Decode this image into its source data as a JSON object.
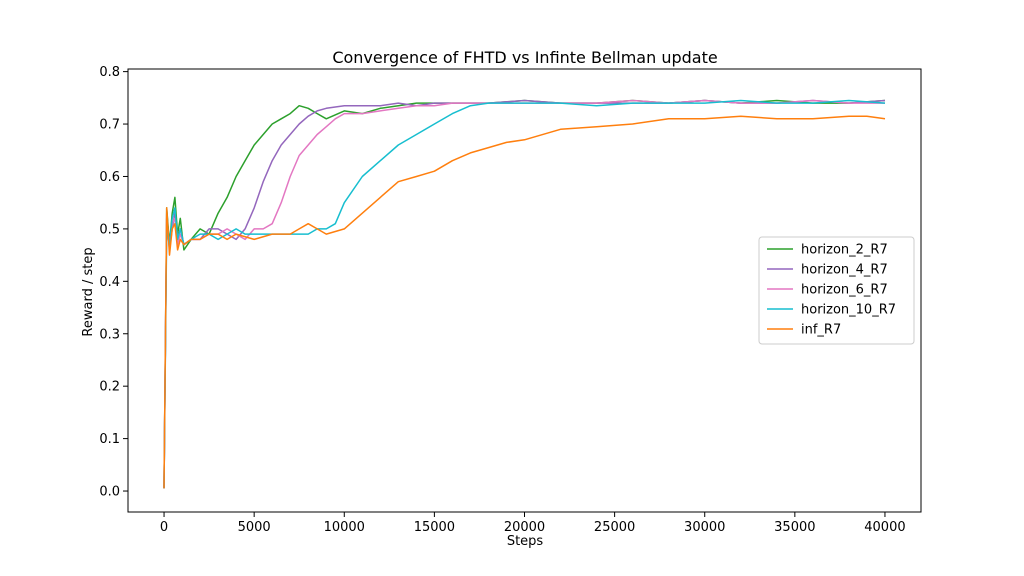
{
  "chart_data": {
    "type": "line",
    "title": "Convergence of FHTD vs Infinte Bellman update",
    "xlabel": "Steps",
    "ylabel": "Reward / step",
    "xlim": [
      -2000,
      42000
    ],
    "ylim": [
      -0.04,
      0.805
    ],
    "xticks": [
      0,
      5000,
      10000,
      15000,
      20000,
      25000,
      30000,
      35000,
      40000
    ],
    "xtick_labels": [
      "0",
      "5000",
      "10000",
      "15000",
      "20000",
      "25000",
      "30000",
      "35000",
      "40000"
    ],
    "yticks": [
      0.0,
      0.1,
      0.2,
      0.3,
      0.4,
      0.5,
      0.6,
      0.7,
      0.8
    ],
    "ytick_labels": [
      "0.0",
      "0.1",
      "0.2",
      "0.3",
      "0.4",
      "0.5",
      "0.6",
      "0.7",
      "0.8"
    ],
    "grid": false,
    "legend_position": "center-right",
    "series": [
      {
        "name": "horizon_2_R7",
        "color": "#2ca02c",
        "x": [
          0,
          150,
          300,
          450,
          600,
          750,
          900,
          1100,
          1500,
          2000,
          2500,
          3000,
          3500,
          4000,
          4500,
          5000,
          5500,
          6000,
          6500,
          7000,
          7500,
          8000,
          8500,
          9000,
          10000,
          11000,
          12000,
          13000,
          14000,
          15000,
          16000,
          18000,
          20000,
          22000,
          24000,
          26000,
          28000,
          30000,
          32000,
          34000,
          36000,
          38000,
          40000
        ],
        "y": [
          0.005,
          0.54,
          0.47,
          0.53,
          0.56,
          0.49,
          0.52,
          0.46,
          0.48,
          0.5,
          0.49,
          0.53,
          0.56,
          0.6,
          0.63,
          0.66,
          0.68,
          0.7,
          0.71,
          0.72,
          0.735,
          0.73,
          0.72,
          0.71,
          0.725,
          0.72,
          0.73,
          0.735,
          0.74,
          0.74,
          0.74,
          0.74,
          0.745,
          0.74,
          0.74,
          0.745,
          0.74,
          0.745,
          0.74,
          0.745,
          0.74,
          0.74,
          0.745
        ]
      },
      {
        "name": "horizon_4_R7",
        "color": "#9467bd",
        "x": [
          0,
          150,
          300,
          450,
          600,
          750,
          900,
          1100,
          1500,
          2000,
          2500,
          3000,
          3500,
          4000,
          4500,
          5000,
          5500,
          6000,
          6500,
          7000,
          7500,
          8000,
          8500,
          9000,
          10000,
          11000,
          12000,
          13000,
          14000,
          15000,
          16000,
          18000,
          20000,
          22000,
          24000,
          26000,
          28000,
          30000,
          32000,
          34000,
          36000,
          38000,
          40000
        ],
        "y": [
          0.005,
          0.52,
          0.46,
          0.5,
          0.53,
          0.48,
          0.5,
          0.47,
          0.48,
          0.48,
          0.5,
          0.5,
          0.49,
          0.48,
          0.5,
          0.54,
          0.59,
          0.63,
          0.66,
          0.68,
          0.7,
          0.715,
          0.725,
          0.73,
          0.735,
          0.735,
          0.735,
          0.74,
          0.735,
          0.74,
          0.74,
          0.74,
          0.745,
          0.74,
          0.74,
          0.74,
          0.74,
          0.745,
          0.74,
          0.74,
          0.745,
          0.74,
          0.745
        ]
      },
      {
        "name": "horizon_6_R7",
        "color": "#e377c2",
        "x": [
          0,
          150,
          300,
          450,
          600,
          750,
          900,
          1100,
          1500,
          2000,
          2500,
          3000,
          3500,
          4000,
          4500,
          5000,
          5500,
          6000,
          6500,
          7000,
          7500,
          8000,
          8500,
          9000,
          9500,
          10000,
          11000,
          12000,
          13000,
          14000,
          15000,
          16000,
          18000,
          20000,
          22000,
          24000,
          26000,
          28000,
          30000,
          32000,
          34000,
          36000,
          38000,
          40000
        ],
        "y": [
          0.005,
          0.53,
          0.46,
          0.51,
          0.52,
          0.47,
          0.49,
          0.47,
          0.48,
          0.48,
          0.49,
          0.49,
          0.5,
          0.49,
          0.48,
          0.5,
          0.5,
          0.51,
          0.55,
          0.6,
          0.64,
          0.66,
          0.68,
          0.695,
          0.71,
          0.72,
          0.72,
          0.725,
          0.73,
          0.735,
          0.735,
          0.74,
          0.74,
          0.74,
          0.74,
          0.74,
          0.745,
          0.74,
          0.745,
          0.74,
          0.74,
          0.745,
          0.74,
          0.74
        ]
      },
      {
        "name": "horizon_10_R7",
        "color": "#17becf",
        "x": [
          0,
          150,
          300,
          450,
          600,
          750,
          900,
          1100,
          1500,
          2000,
          2500,
          3000,
          3500,
          4000,
          4500,
          5000,
          6000,
          7000,
          8000,
          8500,
          9000,
          9500,
          10000,
          11000,
          12000,
          13000,
          14000,
          15000,
          16000,
          17000,
          18000,
          20000,
          22000,
          24000,
          26000,
          28000,
          30000,
          32000,
          34000,
          36000,
          38000,
          40000
        ],
        "y": [
          0.005,
          0.5,
          0.47,
          0.52,
          0.54,
          0.48,
          0.5,
          0.47,
          0.48,
          0.49,
          0.49,
          0.48,
          0.49,
          0.5,
          0.49,
          0.49,
          0.49,
          0.49,
          0.49,
          0.5,
          0.5,
          0.51,
          0.55,
          0.6,
          0.63,
          0.66,
          0.68,
          0.7,
          0.72,
          0.735,
          0.74,
          0.74,
          0.74,
          0.735,
          0.74,
          0.74,
          0.74,
          0.745,
          0.74,
          0.74,
          0.745,
          0.74
        ]
      },
      {
        "name": "inf_R7",
        "color": "#ff7f0e",
        "x": [
          0,
          150,
          300,
          450,
          600,
          750,
          900,
          1100,
          1500,
          2000,
          2500,
          3000,
          3500,
          4000,
          5000,
          6000,
          7000,
          7500,
          8000,
          8500,
          9000,
          10000,
          11000,
          12000,
          13000,
          14000,
          15000,
          16000,
          17000,
          18000,
          19000,
          20000,
          22000,
          24000,
          26000,
          28000,
          30000,
          32000,
          34000,
          36000,
          38000,
          39000,
          40000
        ],
        "y": [
          0.005,
          0.54,
          0.45,
          0.5,
          0.51,
          0.46,
          0.48,
          0.47,
          0.48,
          0.48,
          0.49,
          0.49,
          0.48,
          0.49,
          0.48,
          0.49,
          0.49,
          0.5,
          0.51,
          0.5,
          0.49,
          0.5,
          0.53,
          0.56,
          0.59,
          0.6,
          0.61,
          0.63,
          0.645,
          0.655,
          0.665,
          0.67,
          0.69,
          0.695,
          0.7,
          0.71,
          0.71,
          0.715,
          0.71,
          0.71,
          0.715,
          0.715,
          0.71
        ]
      }
    ]
  }
}
